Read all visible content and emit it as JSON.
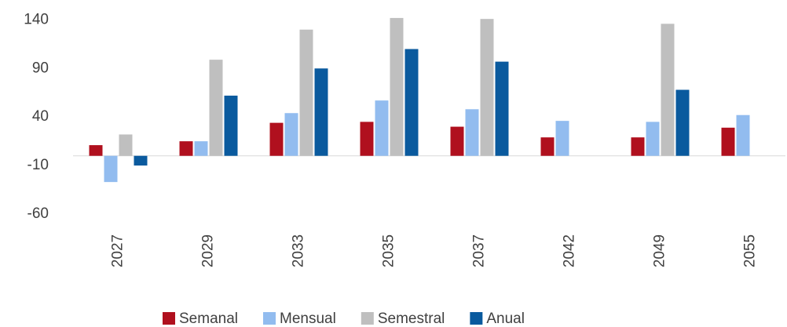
{
  "chart_data": {
    "type": "bar",
    "categories": [
      "2027",
      "2029",
      "2033",
      "2035",
      "2037",
      "2042",
      "2049",
      "2055"
    ],
    "series": [
      {
        "name": "Semanal",
        "color": "#b0101e",
        "values": [
          11,
          15,
          34,
          35,
          30,
          19,
          19,
          29
        ]
      },
      {
        "name": "Mensual",
        "color": "#92bcef",
        "values": [
          -27,
          15,
          44,
          57,
          48,
          36,
          35,
          42
        ]
      },
      {
        "name": "Semestral",
        "color": "#bfbfbf",
        "values": [
          22,
          99,
          130,
          142,
          141,
          null,
          136,
          null
        ]
      },
      {
        "name": "Anual",
        "color": "#0a5a9e",
        "values": [
          -10,
          62,
          90,
          110,
          97,
          null,
          68,
          null
        ]
      }
    ],
    "ylim": [
      -60,
      150
    ],
    "yticks": [
      -60,
      -10,
      40,
      90,
      140
    ],
    "grid": false,
    "legend": "bottom"
  }
}
